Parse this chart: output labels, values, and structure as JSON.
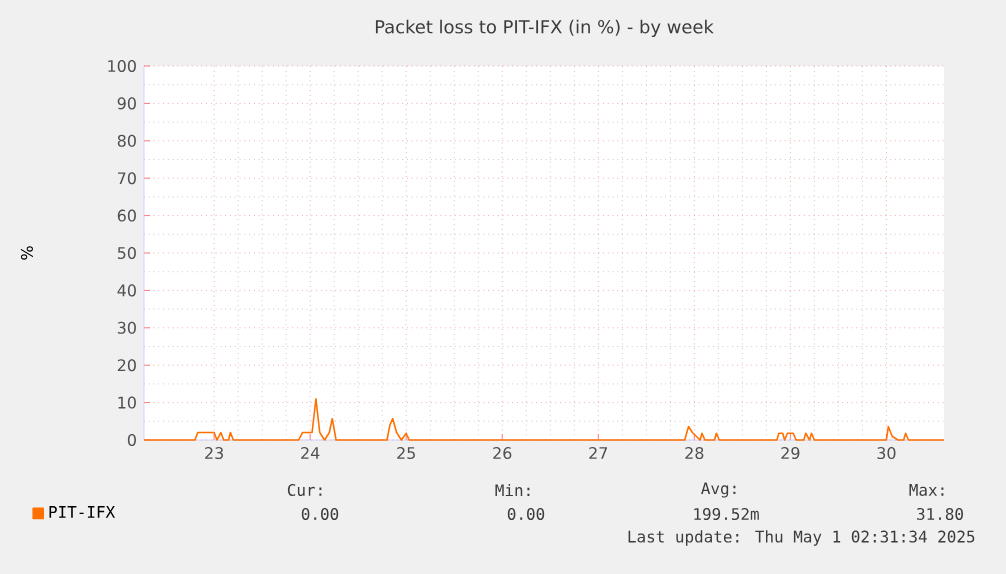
{
  "chart_data": {
    "type": "line",
    "title": "Packet loss to PIT-IFX (in %) - by week",
    "ylabel": "%",
    "xlim": [
      22.27,
      30.6
    ],
    "xticks": [
      23,
      24,
      25,
      26,
      27,
      28,
      29,
      30
    ],
    "ylim": [
      0,
      100
    ],
    "yticks": [
      0,
      10,
      20,
      30,
      40,
      50,
      60,
      70,
      80,
      90,
      100
    ],
    "grid": true,
    "legend": "bottom left",
    "series": [
      {
        "name": "PIT-IFX",
        "color": "#ff7000",
        "x": [
          22.27,
          22.8,
          22.83,
          23.0,
          23.03,
          23.07,
          23.1,
          23.15,
          23.17,
          23.2,
          23.88,
          23.92,
          23.97,
          24.02,
          24.06,
          24.1,
          24.15,
          24.2,
          24.23,
          24.27,
          24.8,
          24.83,
          24.86,
          24.9,
          24.95,
          25.0,
          25.03,
          27.9,
          27.94,
          27.98,
          28.02,
          28.06,
          28.08,
          28.11,
          28.21,
          28.23,
          28.26,
          28.86,
          28.88,
          28.92,
          28.94,
          28.97,
          29.03,
          29.06,
          29.14,
          29.16,
          29.2,
          29.22,
          29.25,
          30.0,
          30.02,
          30.06,
          30.12,
          30.18,
          30.2,
          30.23,
          30.6
        ],
        "values": [
          0,
          0,
          2,
          2,
          0,
          2,
          0,
          0,
          2,
          0,
          0,
          2,
          2,
          2,
          11,
          2,
          0,
          2,
          5.7,
          0,
          0,
          4,
          5.7,
          2,
          0,
          1.8,
          0,
          0,
          3.6,
          2,
          1,
          0,
          1.8,
          0,
          0,
          1.8,
          0,
          0,
          1.8,
          1.8,
          0,
          1.8,
          1.8,
          0,
          0,
          1.8,
          0,
          1.8,
          0,
          0,
          3.6,
          1,
          0,
          0,
          1.8,
          0,
          0
        ]
      }
    ],
    "annotations": [
      "Cur:",
      "0.00",
      "Min:",
      "0.00",
      "Avg:",
      "199.52m",
      "Max:",
      "31.80",
      "Last update: Thu May  1 02:31:34 2025"
    ]
  }
}
